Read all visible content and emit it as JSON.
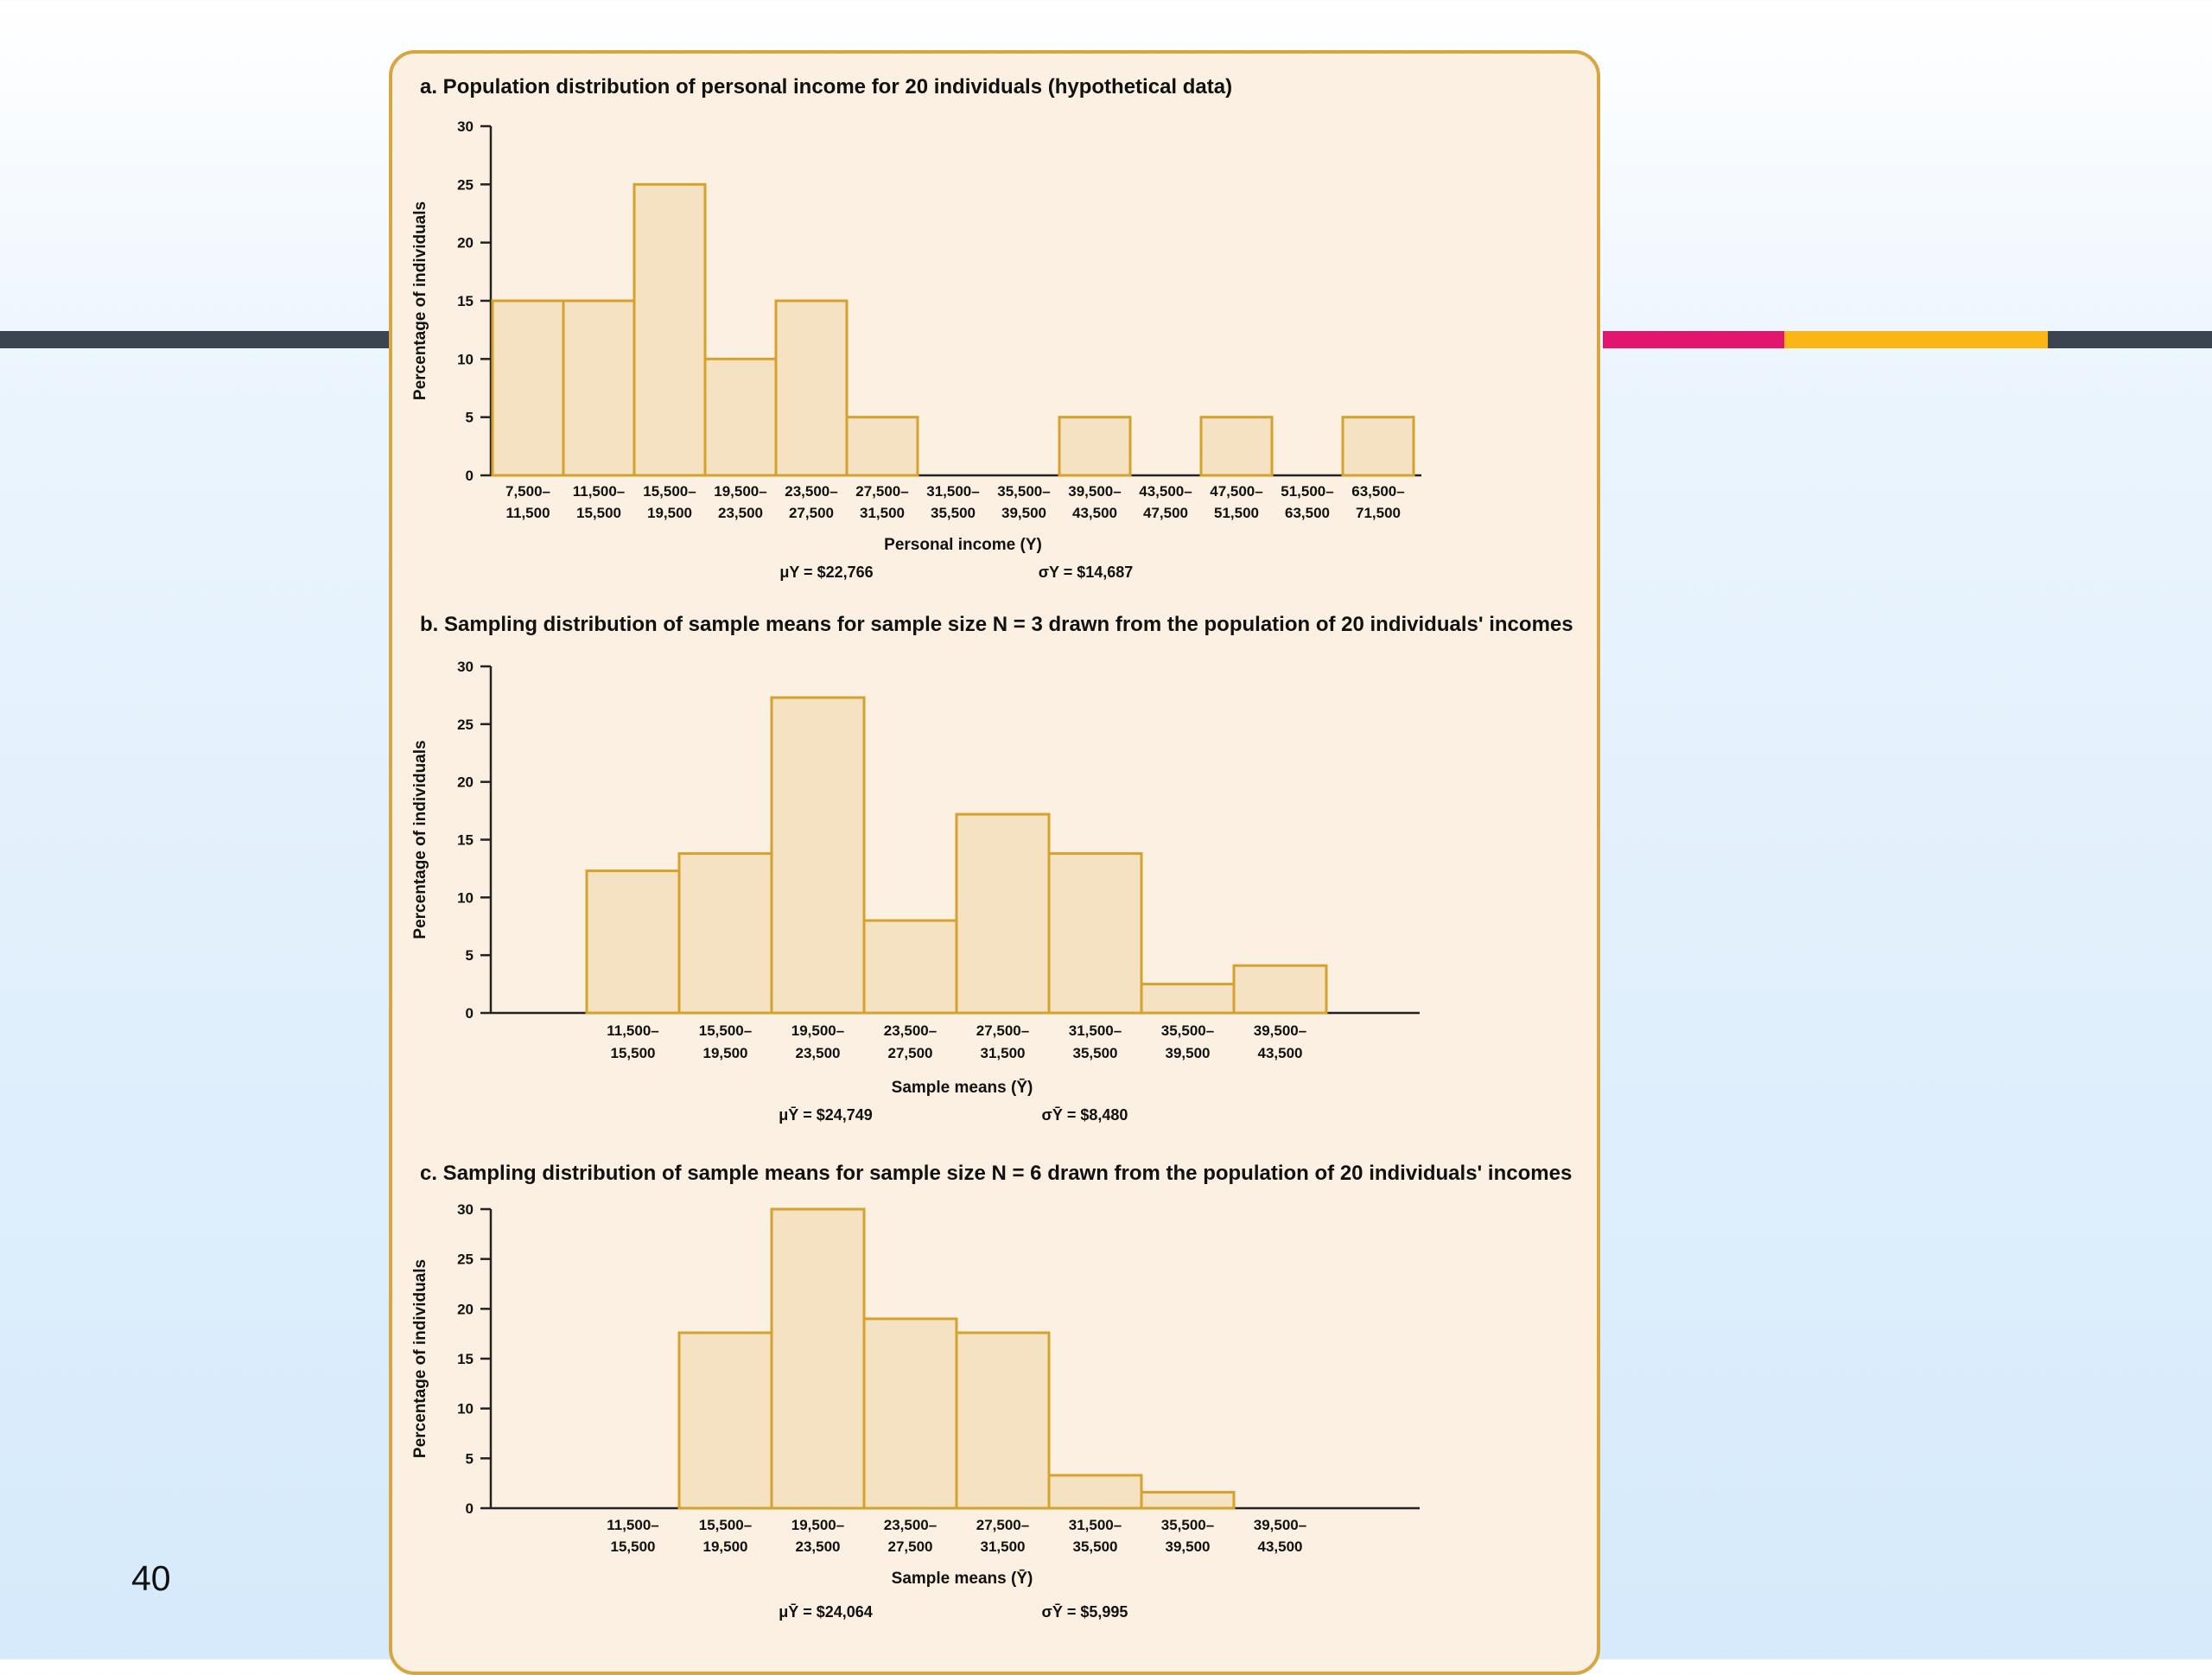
{
  "slide_number": "40",
  "colors": {
    "panel_bg": "#fbf0e1",
    "panel_border": "#d6a640",
    "bar_fill": "#f5e2c3",
    "bar_stroke": "#d6a22e",
    "bar_dark": "#3b4552",
    "bar_pink": "#e2166f",
    "bar_gold": "#fbb515"
  },
  "chart_data": [
    {
      "type": "bar",
      "title": "a. Population distribution of personal income for 20 individuals (hypothetical data)",
      "xlabel": "Personal income (Y)",
      "ylabel": "Percentage of individuals",
      "ylim": [
        0,
        30
      ],
      "yticks": [
        0,
        5,
        10,
        15,
        20,
        25,
        30
      ],
      "categories": [
        [
          "7,500–",
          "11,500"
        ],
        [
          "11,500–",
          "15,500"
        ],
        [
          "15,500–",
          "19,500"
        ],
        [
          "19,500–",
          "23,500"
        ],
        [
          "23,500–",
          "27,500"
        ],
        [
          "27,500–",
          "31,500"
        ],
        [
          "31,500–",
          "35,500"
        ],
        [
          "35,500–",
          "39,500"
        ],
        [
          "39,500–",
          "43,500"
        ],
        [
          "43,500–",
          "47,500"
        ],
        [
          "47,500–",
          "51,500"
        ],
        [
          "51,500–",
          "63,500"
        ],
        [
          "63,500–",
          "71,500"
        ]
      ],
      "values": [
        15,
        15,
        25,
        10,
        15,
        5,
        0,
        0,
        5,
        0,
        5,
        0,
        5
      ],
      "stats": [
        "μY = $22,766",
        "σY = $14,687"
      ]
    },
    {
      "type": "bar",
      "title": "b. Sampling distribution of sample means for sample size N = 3 drawn from the population of 20 individuals' incomes",
      "xlabel": "Sample means (Ȳ)",
      "ylabel": "Percentage of individuals",
      "ylim": [
        0,
        30
      ],
      "yticks": [
        0,
        5,
        10,
        15,
        20,
        25,
        30
      ],
      "categories": [
        [
          "11,500–",
          "15,500"
        ],
        [
          "15,500–",
          "19,500"
        ],
        [
          "19,500–",
          "23,500"
        ],
        [
          "23,500–",
          "27,500"
        ],
        [
          "27,500–",
          "31,500"
        ],
        [
          "31,500–",
          "35,500"
        ],
        [
          "35,500–",
          "39,500"
        ],
        [
          "39,500–",
          "43,500"
        ]
      ],
      "values": [
        12.3,
        13.8,
        27.3,
        8,
        17.2,
        13.8,
        2.5,
        4.1
      ],
      "stats": [
        "μȲ = $24,749",
        "σȲ = $8,480"
      ]
    },
    {
      "type": "bar",
      "title": "c. Sampling distribution of sample means for sample size N = 6 drawn from the population of 20 individuals' incomes",
      "xlabel": "Sample means (Ȳ)",
      "ylabel": "Percentage of individuals",
      "ylim": [
        0,
        30
      ],
      "yticks": [
        0,
        5,
        10,
        15,
        20,
        25,
        30
      ],
      "categories": [
        [
          "11,500–",
          "15,500"
        ],
        [
          "15,500–",
          "19,500"
        ],
        [
          "19,500–",
          "23,500"
        ],
        [
          "23,500–",
          "27,500"
        ],
        [
          "27,500–",
          "31,500"
        ],
        [
          "31,500–",
          "35,500"
        ],
        [
          "35,500–",
          "39,500"
        ],
        [
          "39,500–",
          "43,500"
        ]
      ],
      "values": [
        0,
        17.6,
        30,
        19,
        17.6,
        3.3,
        1.6,
        0
      ],
      "stats": [
        "μȲ = $24,064",
        "σȲ = $5,995"
      ]
    }
  ]
}
